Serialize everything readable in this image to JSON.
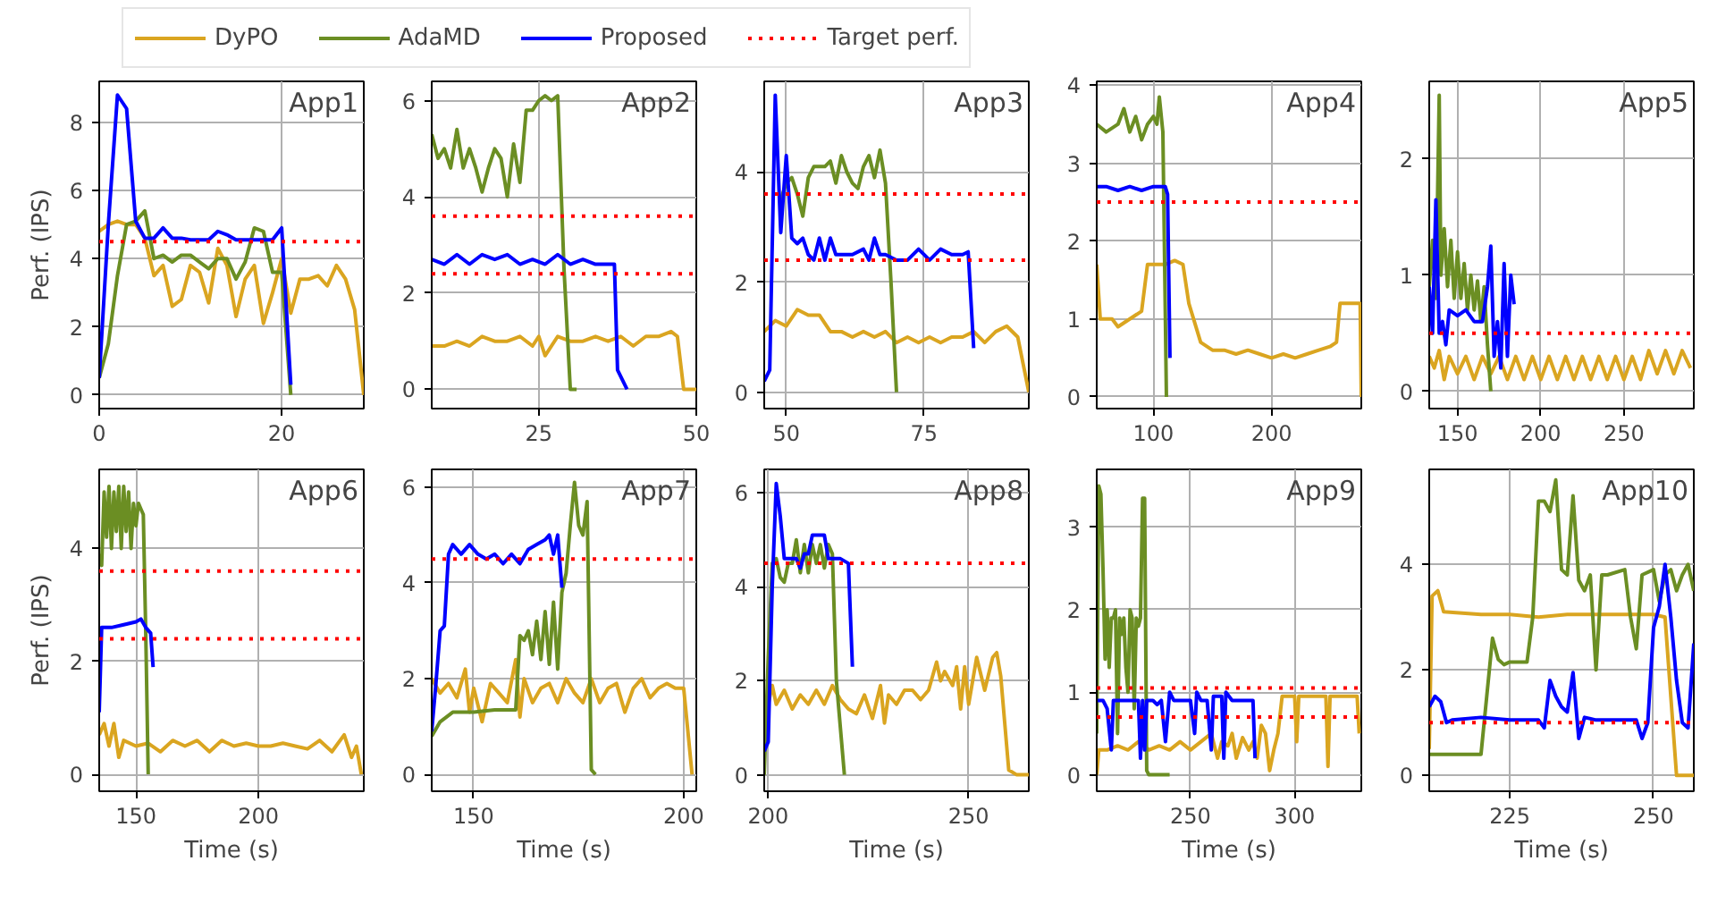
{
  "chart_data": [
    {
      "type": "line",
      "title": "App1",
      "ylabel": "Perf. (IPS)",
      "xlim": [
        0,
        29
      ],
      "xticks": [
        0,
        20
      ],
      "ylim": [
        -0.4,
        9.2
      ],
      "yticks": [
        0,
        2,
        4,
        6,
        8
      ],
      "grid": true,
      "legend": "top",
      "line_style": "solid",
      "ref_lines": [
        {
          "axis": "y",
          "value": 4.5,
          "label": "Target perf.",
          "color": "#ff0000",
          "line_style": "dotted"
        }
      ],
      "series": [
        {
          "name": "DyPO",
          "color": "#daa520",
          "x": [
            0,
            1,
            2,
            3,
            4,
            5,
            6,
            7,
            8,
            9,
            10,
            11,
            12,
            13,
            14,
            15,
            16,
            17,
            18,
            19,
            20,
            21,
            22,
            23,
            24,
            25,
            26,
            27,
            28,
            29
          ],
          "values": [
            4.8,
            5.0,
            5.1,
            5.0,
            5.0,
            4.6,
            3.5,
            3.8,
            2.6,
            2.8,
            3.8,
            3.6,
            2.7,
            4.3,
            3.8,
            2.3,
            3.4,
            3.8,
            2.1,
            3.0,
            4.0,
            2.4,
            3.4,
            3.4,
            3.5,
            3.2,
            3.8,
            3.4,
            2.5,
            0
          ]
        },
        {
          "name": "AdaMD",
          "color": "#6b8e23",
          "x": [
            0,
            1,
            2,
            3,
            4,
            5,
            6,
            7,
            8,
            9,
            10,
            11,
            12,
            13,
            14,
            15,
            16,
            17,
            18,
            19,
            20,
            21
          ],
          "values": [
            0.5,
            1.5,
            3.5,
            5.0,
            5.1,
            5.4,
            4.0,
            4.1,
            3.9,
            4.1,
            4.1,
            3.9,
            3.7,
            4.0,
            4.0,
            3.4,
            3.9,
            4.9,
            4.8,
            3.6,
            3.6,
            0
          ]
        },
        {
          "name": "Proposed",
          "color": "#0000ff",
          "x": [
            0,
            1,
            2,
            3,
            4,
            5,
            6,
            7,
            8,
            9,
            10,
            12,
            13,
            14,
            15,
            17,
            19,
            20,
            21
          ],
          "values": [
            0.5,
            5,
            8.8,
            8.4,
            5.1,
            4.6,
            4.6,
            4.9,
            4.6,
            4.6,
            4.55,
            4.55,
            4.8,
            4.7,
            4.55,
            4.55,
            4.55,
            4.9,
            0.3
          ]
        }
      ]
    },
    {
      "type": "line",
      "title": "App2",
      "xlim": [
        8,
        50
      ],
      "xticks": [
        25,
        50
      ],
      "ylim": [
        -0.4,
        6.4
      ],
      "yticks": [
        0,
        2,
        4,
        6
      ],
      "grid": true,
      "line_style": "solid",
      "ref_lines": [
        {
          "axis": "y",
          "value": 3.6,
          "color": "#ff0000",
          "line_style": "dotted"
        },
        {
          "axis": "y",
          "value": 2.4,
          "color": "#ff0000",
          "line_style": "dotted"
        }
      ],
      "series": [
        {
          "color": "#daa520",
          "x": [
            8,
            10,
            12,
            14,
            16,
            18,
            20,
            22,
            24,
            25,
            26,
            28,
            30,
            32,
            34,
            36,
            38,
            40,
            42,
            44,
            46,
            47,
            48,
            50
          ],
          "values": [
            0.9,
            0.9,
            1.0,
            0.9,
            1.1,
            1.0,
            1.0,
            1.1,
            0.9,
            1.1,
            0.7,
            1.1,
            1.0,
            1.0,
            1.1,
            1.0,
            1.1,
            0.9,
            1.1,
            1.1,
            1.2,
            1.1,
            0,
            0
          ]
        },
        {
          "color": "#6b8e23",
          "x": [
            8,
            9,
            10,
            11,
            12,
            13,
            14,
            15,
            16,
            17,
            18,
            19,
            20,
            21,
            22,
            23,
            24,
            25,
            26,
            27,
            28,
            29,
            30,
            31
          ],
          "values": [
            5.3,
            4.8,
            5.0,
            4.6,
            5.4,
            4.6,
            5.0,
            4.6,
            4.1,
            4.6,
            5.0,
            4.8,
            4.0,
            5.1,
            4.3,
            5.8,
            5.8,
            6.0,
            6.1,
            6.0,
            6.1,
            2.5,
            0,
            0
          ]
        },
        {
          "color": "#0000ff",
          "x": [
            8,
            10,
            12,
            14,
            16,
            18,
            20,
            22,
            24,
            26,
            28,
            30,
            32,
            34,
            36,
            37,
            37.5,
            39
          ],
          "values": [
            2.7,
            2.6,
            2.8,
            2.6,
            2.8,
            2.7,
            2.8,
            2.6,
            2.7,
            2.6,
            2.8,
            2.6,
            2.7,
            2.6,
            2.6,
            2.6,
            0.4,
            0
          ]
        }
      ]
    },
    {
      "type": "line",
      "title": "App3",
      "xlim": [
        46,
        94
      ],
      "xticks": [
        50,
        75
      ],
      "ylim": [
        -0.3,
        5.65
      ],
      "yticks": [
        0,
        2,
        4
      ],
      "grid": true,
      "line_style": "solid",
      "ref_lines": [
        {
          "axis": "y",
          "value": 3.6,
          "color": "#ff0000",
          "line_style": "dotted"
        },
        {
          "axis": "y",
          "value": 2.4,
          "color": "#ff0000",
          "line_style": "dotted"
        }
      ],
      "series": [
        {
          "color": "#daa520",
          "x": [
            46,
            48,
            50,
            52,
            54,
            56,
            58,
            60,
            62,
            64,
            66,
            68,
            70,
            72,
            74,
            76,
            78,
            80,
            82,
            84,
            86,
            88,
            90,
            92,
            93,
            94
          ],
          "values": [
            1.1,
            1.3,
            1.2,
            1.5,
            1.4,
            1.4,
            1.1,
            1.1,
            1.0,
            1.1,
            1.0,
            1.1,
            0.9,
            1.0,
            0.9,
            1.0,
            0.9,
            1.0,
            1.0,
            1.1,
            0.9,
            1.1,
            1.2,
            1.0,
            0.5,
            0
          ]
        },
        {
          "color": "#6b8e23",
          "x": [
            49,
            50,
            51,
            52,
            53,
            54,
            55,
            57,
            58,
            59,
            60,
            61,
            62,
            63,
            64,
            65,
            66,
            67,
            68,
            69,
            70
          ],
          "values": [
            3.5,
            3.8,
            3.9,
            3.6,
            3.2,
            3.9,
            4.1,
            4.1,
            4.2,
            3.8,
            4.3,
            4.0,
            3.8,
            3.7,
            4.1,
            4.3,
            3.9,
            4.4,
            3.8,
            2.0,
            0
          ]
        },
        {
          "color": "#0000ff",
          "x": [
            46,
            47,
            48,
            49,
            50,
            51,
            52,
            53,
            54,
            55,
            56,
            57,
            58,
            59,
            60,
            62,
            64,
            65,
            66,
            67,
            68,
            70,
            72,
            74,
            76,
            78,
            80,
            82,
            83,
            84
          ],
          "values": [
            0.2,
            0.4,
            5.4,
            2.9,
            4.3,
            2.8,
            2.7,
            2.8,
            2.5,
            2.4,
            2.8,
            2.4,
            2.8,
            2.5,
            2.5,
            2.5,
            2.6,
            2.4,
            2.8,
            2.5,
            2.5,
            2.4,
            2.4,
            2.6,
            2.4,
            2.6,
            2.5,
            2.5,
            2.55,
            0.8
          ]
        }
      ]
    },
    {
      "type": "line",
      "title": "App4",
      "xlim": [
        52,
        276
      ],
      "xticks": [
        100,
        200
      ],
      "ylim": [
        -0.15,
        4.05
      ],
      "yticks": [
        0,
        1,
        2,
        3,
        4
      ],
      "grid": true,
      "line_style": "solid",
      "ref_lines": [
        {
          "axis": "y",
          "value": 2.5,
          "color": "#ff0000",
          "line_style": "dotted"
        }
      ],
      "series": [
        {
          "color": "#daa520",
          "x": [
            52,
            55,
            65,
            70,
            80,
            90,
            95,
            110,
            118,
            125,
            130,
            140,
            150,
            160,
            170,
            180,
            190,
            200,
            210,
            220,
            230,
            240,
            250,
            255,
            258,
            270,
            275,
            276
          ],
          "values": [
            1.7,
            1.0,
            1.0,
            0.9,
            1.0,
            1.1,
            1.7,
            1.7,
            1.75,
            1.7,
            1.2,
            0.7,
            0.6,
            0.6,
            0.55,
            0.6,
            0.55,
            0.5,
            0.55,
            0.5,
            0.55,
            0.6,
            0.65,
            0.7,
            1.2,
            1.2,
            1.2,
            0
          ]
        },
        {
          "color": "#6b8e23",
          "x": [
            52,
            60,
            70,
            75,
            80,
            85,
            90,
            95,
            100,
            103,
            105,
            108,
            111
          ],
          "values": [
            3.5,
            3.4,
            3.5,
            3.7,
            3.4,
            3.6,
            3.3,
            3.5,
            3.6,
            3.5,
            3.85,
            3.4,
            0
          ]
        },
        {
          "color": "#0000ff",
          "x": [
            52,
            60,
            70,
            80,
            90,
            100,
            110,
            112,
            114
          ],
          "values": [
            2.7,
            2.7,
            2.65,
            2.7,
            2.65,
            2.7,
            2.7,
            2.6,
            0.5
          ]
        }
      ]
    },
    {
      "type": "line",
      "title": "App5",
      "xlim": [
        133,
        292
      ],
      "xticks": [
        150,
        200,
        250
      ],
      "ylim": [
        -0.15,
        2.67
      ],
      "yticks": [
        0,
        1,
        2
      ],
      "grid": true,
      "line_style": "solid",
      "ref_lines": [
        {
          "axis": "y",
          "value": 0.5,
          "color": "#ff0000",
          "line_style": "dotted"
        }
      ],
      "series": [
        {
          "color": "#daa520",
          "x": [
            133,
            136,
            139,
            142,
            145,
            150,
            155,
            160,
            165,
            170,
            175,
            180,
            185,
            190,
            195,
            200,
            205,
            210,
            215,
            220,
            225,
            230,
            235,
            240,
            245,
            250,
            255,
            260,
            265,
            270,
            275,
            280,
            285,
            290
          ],
          "values": [
            0.3,
            0.2,
            0.35,
            0.1,
            0.3,
            0.15,
            0.3,
            0.1,
            0.3,
            0.15,
            0.3,
            0.1,
            0.3,
            0.1,
            0.3,
            0.1,
            0.3,
            0.1,
            0.3,
            0.1,
            0.3,
            0.1,
            0.3,
            0.1,
            0.3,
            0.1,
            0.3,
            0.1,
            0.35,
            0.15,
            0.35,
            0.15,
            0.35,
            0.2
          ]
        },
        {
          "color": "#6b8e23",
          "x": [
            133,
            135,
            137,
            139,
            140,
            142,
            144,
            146,
            148,
            150,
            152,
            154,
            156,
            158,
            160,
            162,
            164,
            166,
            168,
            170
          ],
          "values": [
            0.9,
            1.3,
            0.8,
            2.55,
            1.0,
            1.4,
            0.9,
            1.3,
            0.8,
            1.2,
            0.8,
            1.1,
            0.7,
            1.0,
            0.7,
            0.95,
            0.6,
            0.9,
            0.4,
            0
          ]
        },
        {
          "color": "#0000ff",
          "x": [
            133,
            135,
            137,
            139,
            141,
            143,
            145,
            150,
            155,
            160,
            165,
            168,
            170,
            172,
            174,
            176,
            178,
            180,
            182,
            184
          ],
          "values": [
            0.9,
            0.5,
            1.65,
            0.5,
            0.6,
            0.4,
            0.7,
            0.65,
            0.7,
            0.6,
            0.6,
            0.9,
            1.25,
            0.3,
            0.6,
            0.2,
            1.1,
            0.3,
            1.0,
            0.75
          ]
        }
      ]
    },
    {
      "type": "line",
      "title": "App6",
      "xlabel": "Time (s)",
      "ylabel": "Perf. (IPS)",
      "xlim": [
        135,
        243
      ],
      "xticks": [
        150,
        200
      ],
      "ylim": [
        -0.3,
        5.4
      ],
      "yticks": [
        0,
        2,
        4
      ],
      "grid": true,
      "line_style": "solid",
      "ref_lines": [
        {
          "axis": "y",
          "value": 3.6,
          "color": "#ff0000",
          "line_style": "dotted"
        },
        {
          "axis": "y",
          "value": 2.4,
          "color": "#ff0000",
          "line_style": "dotted"
        }
      ],
      "series": [
        {
          "color": "#daa520",
          "x": [
            135,
            137,
            139,
            141,
            143,
            145,
            150,
            155,
            160,
            165,
            170,
            175,
            180,
            185,
            190,
            195,
            200,
            205,
            210,
            215,
            220,
            225,
            230,
            235,
            238,
            240,
            242
          ],
          "values": [
            0.7,
            0.9,
            0.5,
            0.9,
            0.3,
            0.6,
            0.5,
            0.55,
            0.4,
            0.6,
            0.5,
            0.6,
            0.4,
            0.6,
            0.5,
            0.55,
            0.5,
            0.5,
            0.55,
            0.5,
            0.45,
            0.6,
            0.4,
            0.7,
            0.3,
            0.5,
            0
          ]
        },
        {
          "color": "#6b8e23",
          "x": [
            135,
            136,
            137,
            138,
            139,
            140,
            141,
            142,
            143,
            144,
            145,
            146,
            147,
            148,
            149,
            150,
            151,
            152,
            153,
            154,
            155
          ],
          "values": [
            3.9,
            3.7,
            5.0,
            4.2,
            5.1,
            4.0,
            5.0,
            4.3,
            5.1,
            4.0,
            5.1,
            4.3,
            5.0,
            4.0,
            4.8,
            4.4,
            4.8,
            4.7,
            4.6,
            2.5,
            0
          ]
        },
        {
          "color": "#0000ff",
          "x": [
            135,
            136,
            140,
            145,
            150,
            152,
            154,
            156,
            157
          ],
          "values": [
            1.1,
            2.6,
            2.6,
            2.65,
            2.7,
            2.75,
            2.6,
            2.5,
            1.9
          ]
        }
      ]
    },
    {
      "type": "line",
      "title": "App7",
      "xlabel": "Time (s)",
      "xlim": [
        140,
        203
      ],
      "xticks": [
        150,
        200
      ],
      "ylim": [
        -0.35,
        6.37
      ],
      "yticks": [
        0,
        2,
        4,
        6
      ],
      "grid": true,
      "line_style": "solid",
      "ref_lines": [
        {
          "axis": "y",
          "value": 4.5,
          "color": "#ff0000",
          "line_style": "dotted"
        }
      ],
      "series": [
        {
          "color": "#daa520",
          "x": [
            140,
            142,
            144,
            146,
            148,
            149,
            150,
            152,
            154,
            156,
            158,
            160,
            161,
            162,
            164,
            166,
            168,
            170,
            172,
            174,
            176,
            178,
            180,
            182,
            184,
            186,
            188,
            190,
            192,
            194,
            196,
            198,
            200,
            202
          ],
          "values": [
            2.0,
            1.7,
            1.9,
            1.6,
            2.2,
            1.3,
            1.8,
            1.1,
            1.9,
            1.7,
            1.5,
            2.4,
            1.2,
            2.0,
            1.5,
            1.8,
            1.9,
            1.5,
            2.0,
            1.7,
            1.5,
            2.0,
            1.5,
            1.8,
            1.9,
            1.3,
            1.8,
            2.0,
            1.6,
            1.8,
            1.9,
            1.8,
            1.8,
            0
          ]
        },
        {
          "color": "#6b8e23",
          "x": [
            140,
            142,
            145,
            150,
            155,
            160,
            161,
            162,
            163,
            164,
            165,
            166,
            167,
            168,
            169,
            170,
            171,
            172,
            173,
            174,
            175,
            176,
            177,
            178,
            179
          ],
          "values": [
            0.8,
            1.1,
            1.3,
            1.3,
            1.35,
            1.35,
            2.9,
            2.8,
            3.0,
            2.5,
            3.2,
            2.4,
            3.4,
            2.3,
            3.6,
            2.2,
            3.8,
            4.2,
            5.2,
            6.1,
            5.2,
            5.0,
            5.7,
            0.1,
            0
          ]
        },
        {
          "color": "#0000ff",
          "x": [
            140,
            141,
            142,
            143,
            144,
            145,
            147,
            149,
            151,
            153,
            155,
            157,
            159,
            161,
            163,
            165,
            167,
            168,
            169,
            170,
            171
          ],
          "values": [
            0.9,
            1.9,
            3.0,
            3.1,
            4.6,
            4.8,
            4.6,
            4.8,
            4.6,
            4.5,
            4.6,
            4.4,
            4.6,
            4.4,
            4.7,
            4.8,
            4.9,
            5.0,
            4.6,
            5.0,
            3.9
          ]
        }
      ]
    },
    {
      "type": "line",
      "title": "App8",
      "xlabel": "Time (s)",
      "xlim": [
        199,
        265
      ],
      "xticks": [
        200,
        250
      ],
      "ylim": [
        -0.35,
        6.5
      ],
      "yticks": [
        0,
        2,
        4,
        6
      ],
      "grid": true,
      "line_style": "solid",
      "ref_lines": [
        {
          "axis": "y",
          "value": 4.5,
          "color": "#ff0000",
          "line_style": "dotted"
        }
      ],
      "series": [
        {
          "color": "#daa520",
          "x": [
            199,
            200,
            201,
            202,
            204,
            206,
            208,
            210,
            212,
            214,
            216,
            218,
            220,
            222,
            224,
            226,
            228,
            229,
            230,
            232,
            234,
            236,
            238,
            240,
            242,
            243,
            244,
            246,
            247,
            248,
            249,
            250,
            251,
            252,
            254,
            256,
            257,
            258,
            260,
            262,
            265
          ],
          "values": [
            1.5,
            1.5,
            1.9,
            1.5,
            1.8,
            1.4,
            1.7,
            1.5,
            1.8,
            1.5,
            1.9,
            1.6,
            1.4,
            1.3,
            1.7,
            1.2,
            1.9,
            1.1,
            1.7,
            1.5,
            1.8,
            1.8,
            1.6,
            1.8,
            2.4,
            2.0,
            2.2,
            1.9,
            2.3,
            1.4,
            2.3,
            1.5,
            2.0,
            2.5,
            1.8,
            2.5,
            2.6,
            2.1,
            0.1,
            0,
            0
          ]
        },
        {
          "color": "#6b8e23",
          "x": [
            199,
            200,
            201,
            202,
            203,
            204,
            205,
            206,
            207,
            208,
            209,
            210,
            211,
            212,
            213,
            214,
            215,
            216,
            217,
            218,
            219
          ],
          "values": [
            0,
            2.5,
            4.5,
            4.6,
            4.2,
            4.1,
            4.5,
            4.5,
            5.0,
            4.3,
            4.9,
            4.3,
            4.9,
            4.5,
            4.9,
            4.4,
            4.9,
            4.7,
            2.0,
            1.0,
            0
          ]
        },
        {
          "color": "#0000ff",
          "x": [
            199,
            200,
            201,
            202,
            203,
            204,
            207,
            208,
            209,
            210,
            211,
            214,
            215,
            218,
            220,
            221
          ],
          "values": [
            0.5,
            0.7,
            4,
            6.2,
            5.5,
            4.6,
            4.6,
            4.4,
            4.7,
            4.7,
            5.1,
            5.1,
            4.6,
            4.6,
            4.5,
            2.3
          ]
        }
      ]
    },
    {
      "type": "line",
      "title": "App9",
      "xlabel": "Time (s)",
      "xlim": [
        205,
        332
      ],
      "xticks": [
        250,
        300
      ],
      "ylim": [
        -0.2,
        3.7
      ],
      "yticks": [
        0,
        1,
        2,
        3
      ],
      "grid": true,
      "line_style": "solid",
      "ref_lines": [
        {
          "axis": "y",
          "value": 1.05,
          "color": "#ff0000",
          "line_style": "dotted"
        },
        {
          "axis": "y",
          "value": 0.7,
          "color": "#ff0000",
          "line_style": "dotted"
        }
      ],
      "series": [
        {
          "color": "#daa520",
          "x": [
            205,
            206,
            210,
            215,
            220,
            225,
            230,
            235,
            240,
            245,
            250,
            255,
            260,
            263,
            265,
            268,
            270,
            272,
            275,
            278,
            280,
            282,
            284,
            286,
            288,
            290,
            292,
            294,
            300,
            301,
            302,
            305,
            310,
            315,
            316,
            317,
            320,
            325,
            330,
            331
          ],
          "values": [
            0,
            0.3,
            0.3,
            0.35,
            0.3,
            0.4,
            0.3,
            0.35,
            0.3,
            0.4,
            0.3,
            0.4,
            0.5,
            0.2,
            0.4,
            0.35,
            0.5,
            0.2,
            0.45,
            0.3,
            0.4,
            0.2,
            0.6,
            0.5,
            0.05,
            0.3,
            0.5,
            0.95,
            0.95,
            0.4,
            0.95,
            0.95,
            0.95,
            0.95,
            0.1,
            0.95,
            0.95,
            0.95,
            0.95,
            0.5
          ]
        },
        {
          "color": "#6b8e23",
          "x": [
            205,
            206,
            207,
            208,
            209,
            210,
            211,
            212,
            213,
            214,
            215,
            216,
            217,
            218,
            219,
            220,
            221,
            222,
            223,
            224,
            225,
            226,
            227,
            228,
            229,
            230,
            235,
            240
          ],
          "values": [
            0.5,
            3.5,
            3.4,
            2.5,
            1.4,
            2.0,
            1.3,
            1.9,
            1.9,
            2.0,
            0.5,
            1.9,
            1.7,
            1.9,
            1.3,
            1.0,
            2.0,
            1.9,
            0.8,
            1.9,
            1.8,
            1.9,
            3.35,
            3.35,
            0.05,
            0,
            0,
            0
          ]
        },
        {
          "color": "#0000ff",
          "x": [
            205,
            208,
            210,
            212,
            213,
            215,
            220,
            225,
            226,
            227,
            228,
            229,
            232,
            234,
            236,
            238,
            240,
            242,
            245,
            250,
            252,
            253,
            255,
            258,
            260,
            261,
            265,
            266,
            267,
            270,
            275,
            280,
            281
          ],
          "values": [
            0.9,
            0.9,
            0.8,
            0.3,
            0.9,
            0.9,
            0.9,
            0.9,
            0.2,
            0.9,
            0.3,
            0.9,
            0.9,
            0.85,
            0.9,
            0.4,
            1.0,
            0.9,
            0.9,
            0.9,
            0.5,
            1.0,
            0.9,
            0.9,
            0.3,
            0.95,
            0.95,
            0.2,
            1.0,
            0.9,
            0.9,
            0.9,
            0.2
          ]
        }
      ]
    },
    {
      "type": "line",
      "title": "App10",
      "xlabel": "Time (s)",
      "xlim": [
        211,
        257
      ],
      "xticks": [
        225,
        250
      ],
      "ylim": [
        -0.3,
        5.8
      ],
      "yticks": [
        0,
        2,
        4
      ],
      "grid": true,
      "line_style": "solid",
      "ref_lines": [
        {
          "axis": "y",
          "value": 1.0,
          "color": "#ff0000",
          "line_style": "dotted"
        }
      ],
      "series": [
        {
          "color": "#daa520",
          "x": [
            211,
            211.5,
            212.5,
            213.5,
            220,
            225,
            230,
            235,
            240,
            245,
            250,
            252,
            254,
            257
          ],
          "values": [
            0.5,
            3.4,
            3.5,
            3.1,
            3.05,
            3.05,
            3.0,
            3.05,
            3.05,
            3.05,
            3.05,
            3.0,
            0,
            0
          ]
        },
        {
          "color": "#6b8e23",
          "x": [
            211,
            215,
            219,
            220,
            221,
            222,
            223,
            224,
            225,
            228,
            229,
            230,
            231,
            232,
            233,
            234,
            235,
            236,
            237,
            238,
            239,
            240,
            241,
            242,
            245,
            246,
            247,
            248,
            250,
            251,
            252,
            253,
            254,
            255,
            256,
            257
          ],
          "values": [
            0.4,
            0.4,
            0.4,
            0.4,
            1.5,
            2.6,
            2.2,
            2.1,
            2.15,
            2.15,
            3.0,
            5.2,
            5.2,
            5.0,
            5.6,
            3.9,
            3.8,
            5.3,
            3.7,
            3.5,
            3.8,
            2.0,
            3.8,
            3.8,
            3.9,
            3.0,
            2.4,
            3.8,
            3.9,
            3.3,
            3.8,
            3.9,
            3.5,
            3.8,
            4.0,
            3.5
          ]
        },
        {
          "color": "#0000ff",
          "x": [
            211,
            212,
            213,
            214,
            215,
            220,
            225,
            230,
            231,
            232,
            233,
            234,
            235,
            236,
            237,
            238,
            240,
            245,
            247,
            248,
            249,
            250,
            251,
            252,
            253,
            254,
            255,
            256,
            257
          ],
          "values": [
            1.3,
            1.5,
            1.4,
            1.0,
            1.05,
            1.1,
            1.05,
            1.05,
            0.9,
            1.8,
            1.5,
            1.3,
            1.2,
            1.95,
            0.7,
            1.1,
            1.05,
            1.05,
            1.05,
            0.7,
            1.0,
            2.8,
            3.2,
            4.0,
            3.0,
            1.8,
            1.0,
            0.9,
            2.5
          ]
        }
      ]
    }
  ]
}
